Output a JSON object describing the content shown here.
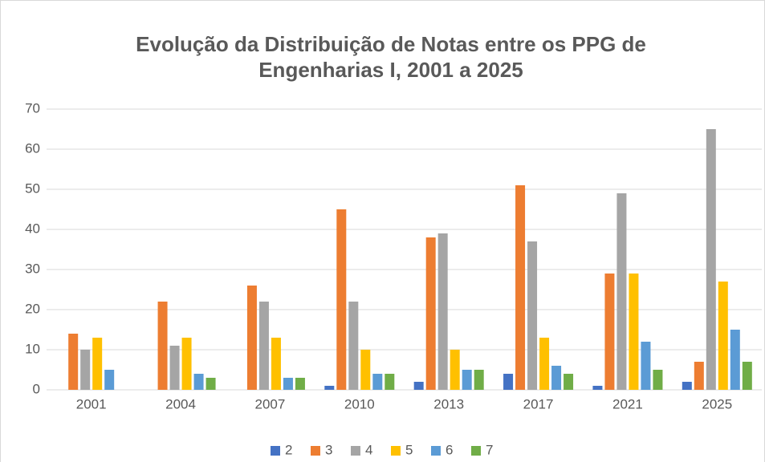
{
  "chart_data": {
    "type": "bar",
    "title": [
      "Evolução da Distribuição de Notas entre os PPG de",
      "Engenharias I, 2001 a 2025"
    ],
    "categories": [
      "2001",
      "2004",
      "2007",
      "2010",
      "2013",
      "2017",
      "2021",
      "2025"
    ],
    "series": [
      {
        "name": "2",
        "color": "#4472c4",
        "values": [
          0,
          0,
          0,
          1,
          2,
          4,
          1,
          2
        ]
      },
      {
        "name": "3",
        "color": "#ed7d31",
        "values": [
          14,
          22,
          26,
          45,
          38,
          51,
          29,
          7
        ]
      },
      {
        "name": "4",
        "color": "#a5a5a5",
        "values": [
          10,
          11,
          22,
          22,
          39,
          37,
          49,
          65
        ]
      },
      {
        "name": "5",
        "color": "#ffc000",
        "values": [
          13,
          13,
          13,
          10,
          10,
          13,
          29,
          27
        ]
      },
      {
        "name": "6",
        "color": "#5b9bd5",
        "values": [
          5,
          4,
          3,
          4,
          5,
          6,
          12,
          15
        ]
      },
      {
        "name": "7",
        "color": "#70ad47",
        "values": [
          0,
          3,
          3,
          4,
          5,
          4,
          5,
          7
        ]
      }
    ],
    "ylim": [
      0,
      70
    ],
    "yticks": [
      0,
      10,
      20,
      30,
      40,
      50,
      60,
      70
    ],
    "grid": true,
    "legend": "bottom"
  }
}
